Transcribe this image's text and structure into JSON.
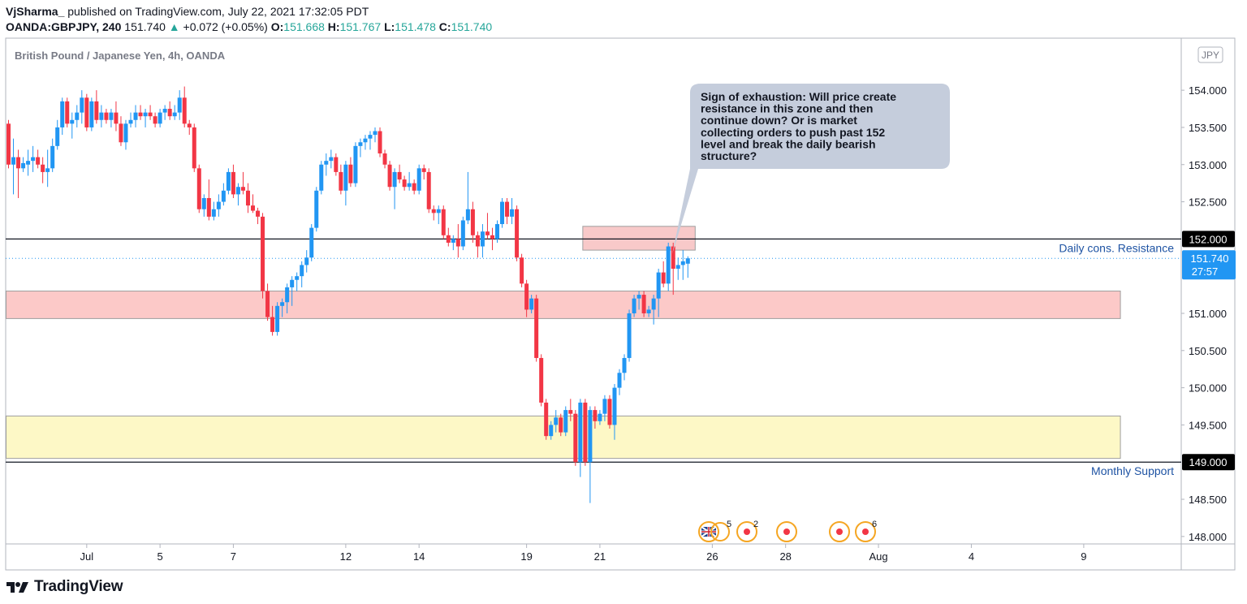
{
  "header": {
    "author": "VjSharma_",
    "published_text": "published on TradingView.com, July 22, 2021 17:32:05 PDT",
    "symbol": "OANDA:GBPJPY, 240",
    "last": "151.740",
    "change": "+0.072 (+0.05%)",
    "open_label": "O:",
    "open": "151.668",
    "high_label": "H:",
    "high": "151.767",
    "low_label": "L:",
    "low": "151.478",
    "close_label": "C:",
    "close": "151.740"
  },
  "footer": {
    "brand": "TradingView"
  },
  "chart_data": {
    "type": "candlestick",
    "title": "British Pound / Japanese Yen, 4h, OANDA",
    "currency_badge": "JPY",
    "ylim": [
      147.9,
      154.7
    ],
    "y_ticks": [
      "148.000",
      "148.500",
      "149.000",
      "149.500",
      "150.000",
      "150.500",
      "151.000",
      "151.500",
      "152.000",
      "152.500",
      "153.000",
      "153.500",
      "154.000"
    ],
    "x_ticks": [
      {
        "label": "Jul",
        "index": 16
      },
      {
        "label": "5",
        "index": 31
      },
      {
        "label": "7",
        "index": 46
      },
      {
        "label": "12",
        "index": 69
      },
      {
        "label": "14",
        "index": 84
      },
      {
        "label": "19",
        "index": 106
      },
      {
        "label": "21",
        "index": 121
      },
      {
        "label": "26",
        "index": 144
      },
      {
        "label": "28",
        "index": 159
      },
      {
        "label": "Aug",
        "index": 178
      },
      {
        "label": "4",
        "index": 197
      },
      {
        "label": "9",
        "index": 220
      }
    ],
    "up_color": "#2196f3",
    "down_color": "#f23645",
    "candles": [
      [
        153.55,
        153.6,
        152.95,
        153.0
      ],
      [
        153.0,
        153.35,
        152.6,
        153.1
      ],
      [
        153.1,
        153.2,
        152.55,
        152.95
      ],
      [
        152.95,
        153.1,
        152.9,
        153.02
      ],
      [
        153.0,
        153.2,
        152.85,
        153.05
      ],
      [
        153.05,
        153.25,
        152.9,
        153.1
      ],
      [
        153.1,
        153.2,
        152.95,
        153.0
      ],
      [
        153.0,
        153.1,
        152.75,
        152.9
      ],
      [
        152.9,
        153.2,
        152.7,
        152.95
      ],
      [
        152.95,
        153.35,
        152.9,
        153.25
      ],
      [
        153.25,
        153.6,
        153.2,
        153.5
      ],
      [
        153.5,
        153.9,
        153.4,
        153.85
      ],
      [
        153.85,
        153.9,
        153.5,
        153.55
      ],
      [
        153.55,
        153.7,
        153.35,
        153.6
      ],
      [
        153.6,
        153.8,
        153.5,
        153.7
      ],
      [
        153.7,
        154.0,
        153.55,
        153.9
      ],
      [
        153.9,
        153.95,
        153.45,
        153.5
      ],
      [
        153.5,
        153.9,
        153.45,
        153.85
      ],
      [
        153.85,
        154.0,
        153.55,
        153.6
      ],
      [
        153.6,
        153.8,
        153.5,
        153.7
      ],
      [
        153.7,
        153.75,
        153.55,
        153.6
      ],
      [
        153.6,
        153.75,
        153.5,
        153.7
      ],
      [
        153.7,
        153.85,
        153.45,
        153.55
      ],
      [
        153.55,
        153.65,
        153.25,
        153.3
      ],
      [
        153.3,
        153.6,
        153.2,
        153.55
      ],
      [
        153.55,
        153.7,
        153.5,
        153.6
      ],
      [
        153.6,
        153.8,
        153.5,
        153.7
      ],
      [
        153.7,
        153.8,
        153.6,
        153.65
      ],
      [
        153.65,
        153.75,
        153.5,
        153.7
      ],
      [
        153.7,
        153.8,
        153.6,
        153.65
      ],
      [
        153.65,
        153.7,
        153.5,
        153.55
      ],
      [
        153.55,
        153.75,
        153.5,
        153.7
      ],
      [
        153.7,
        153.8,
        153.6,
        153.75
      ],
      [
        153.75,
        153.85,
        153.6,
        153.65
      ],
      [
        153.65,
        153.8,
        153.6,
        153.7
      ],
      [
        153.7,
        154.0,
        153.6,
        153.9
      ],
      [
        153.9,
        154.05,
        153.5,
        153.55
      ],
      [
        153.55,
        153.6,
        153.4,
        153.5
      ],
      [
        153.5,
        153.55,
        152.9,
        152.95
      ],
      [
        152.95,
        153.0,
        152.35,
        152.4
      ],
      [
        152.4,
        152.6,
        152.3,
        152.55
      ],
      [
        152.55,
        152.8,
        152.25,
        152.3
      ],
      [
        152.3,
        152.5,
        152.25,
        152.4
      ],
      [
        152.4,
        152.6,
        152.3,
        152.5
      ],
      [
        152.5,
        152.75,
        152.45,
        152.65
      ],
      [
        152.65,
        152.95,
        152.6,
        152.9
      ],
      [
        152.9,
        153.0,
        152.55,
        152.6
      ],
      [
        152.6,
        152.75,
        152.45,
        152.7
      ],
      [
        152.7,
        152.9,
        152.6,
        152.65
      ],
      [
        152.65,
        152.75,
        152.35,
        152.45
      ],
      [
        152.45,
        152.6,
        152.35,
        152.38
      ],
      [
        152.38,
        152.42,
        152.2,
        152.3
      ],
      [
        152.3,
        152.35,
        151.2,
        151.3
      ],
      [
        151.3,
        151.4,
        150.9,
        150.95
      ],
      [
        150.95,
        151.1,
        150.7,
        150.75
      ],
      [
        150.75,
        151.15,
        150.7,
        151.1
      ],
      [
        151.1,
        151.2,
        150.95,
        151.15
      ],
      [
        151.15,
        151.4,
        151.0,
        151.35
      ],
      [
        151.35,
        151.5,
        151.1,
        151.45
      ],
      [
        151.45,
        151.55,
        151.3,
        151.5
      ],
      [
        151.5,
        151.7,
        151.35,
        151.65
      ],
      [
        151.65,
        151.85,
        151.55,
        151.75
      ],
      [
        151.75,
        152.2,
        151.7,
        152.15
      ],
      [
        152.15,
        152.7,
        152.1,
        152.65
      ],
      [
        152.65,
        153.05,
        152.6,
        153.0
      ],
      [
        153.0,
        153.15,
        152.85,
        153.05
      ],
      [
        153.05,
        153.2,
        152.95,
        153.1
      ],
      [
        153.1,
        153.15,
        152.85,
        152.9
      ],
      [
        152.9,
        153.0,
        152.6,
        152.65
      ],
      [
        152.65,
        153.05,
        152.45,
        153.0
      ],
      [
        153.0,
        153.1,
        152.7,
        152.75
      ],
      [
        152.75,
        153.3,
        152.7,
        153.25
      ],
      [
        153.25,
        153.35,
        153.1,
        153.3
      ],
      [
        153.3,
        153.4,
        153.2,
        153.35
      ],
      [
        153.35,
        153.45,
        153.2,
        153.4
      ],
      [
        153.4,
        153.5,
        153.3,
        153.45
      ],
      [
        153.45,
        153.5,
        153.1,
        153.15
      ],
      [
        153.15,
        153.2,
        152.95,
        153.0
      ],
      [
        153.0,
        153.05,
        152.65,
        152.7
      ],
      [
        152.7,
        152.95,
        152.4,
        152.9
      ],
      [
        152.9,
        153.0,
        152.75,
        152.8
      ],
      [
        152.8,
        152.85,
        152.65,
        152.7
      ],
      [
        152.7,
        152.9,
        152.65,
        152.75
      ],
      [
        152.75,
        152.8,
        152.6,
        152.65
      ],
      [
        152.65,
        153.0,
        152.6,
        152.95
      ],
      [
        152.95,
        153.0,
        152.8,
        152.9
      ],
      [
        152.9,
        152.95,
        152.35,
        152.4
      ],
      [
        152.4,
        152.45,
        152.25,
        152.35
      ],
      [
        152.35,
        152.45,
        152.2,
        152.4
      ],
      [
        152.4,
        152.45,
        152.0,
        152.05
      ],
      [
        152.05,
        152.15,
        151.9,
        151.95
      ],
      [
        151.95,
        152.05,
        151.85,
        152.0
      ],
      [
        152.0,
        152.2,
        151.75,
        151.9
      ],
      [
        151.9,
        152.3,
        151.85,
        152.25
      ],
      [
        152.25,
        152.9,
        152.2,
        152.4
      ],
      [
        152.4,
        152.5,
        151.95,
        152.05
      ],
      [
        152.05,
        152.1,
        151.75,
        151.9
      ],
      [
        151.9,
        152.2,
        151.75,
        152.1
      ],
      [
        152.1,
        152.35,
        152.0,
        152.05
      ],
      [
        152.05,
        152.15,
        151.85,
        152.0
      ],
      [
        152.0,
        152.25,
        151.95,
        152.2
      ],
      [
        152.2,
        152.55,
        152.15,
        152.5
      ],
      [
        152.5,
        152.55,
        152.2,
        152.3
      ],
      [
        152.3,
        152.55,
        152.2,
        152.4
      ],
      [
        152.4,
        152.45,
        151.7,
        151.75
      ],
      [
        151.75,
        151.8,
        151.35,
        151.4
      ],
      [
        151.4,
        151.45,
        150.95,
        151.05
      ],
      [
        151.05,
        151.25,
        151.0,
        151.2
      ],
      [
        151.2,
        151.25,
        150.35,
        150.4
      ],
      [
        150.4,
        150.45,
        149.75,
        149.8
      ],
      [
        149.8,
        149.85,
        149.3,
        149.35
      ],
      [
        149.35,
        149.55,
        149.3,
        149.5
      ],
      [
        149.5,
        149.7,
        149.4,
        149.6
      ],
      [
        149.6,
        149.65,
        149.35,
        149.4
      ],
      [
        149.4,
        149.75,
        149.35,
        149.7
      ],
      [
        149.7,
        149.85,
        149.55,
        149.65
      ],
      [
        149.65,
        149.7,
        148.95,
        149.0
      ],
      [
        149.0,
        149.85,
        148.8,
        149.8
      ],
      [
        149.8,
        149.85,
        148.95,
        149.0
      ],
      [
        149.0,
        149.75,
        148.45,
        149.7
      ],
      [
        149.7,
        149.75,
        149.45,
        149.55
      ],
      [
        149.55,
        149.7,
        149.5,
        149.65
      ],
      [
        149.65,
        149.9,
        149.55,
        149.85
      ],
      [
        149.85,
        149.9,
        149.45,
        149.5
      ],
      [
        149.5,
        150.05,
        149.3,
        150.0
      ],
      [
        150.0,
        150.25,
        149.9,
        150.2
      ],
      [
        150.2,
        150.45,
        150.1,
        150.4
      ],
      [
        150.4,
        151.05,
        150.35,
        151.0
      ],
      [
        151.0,
        151.25,
        150.95,
        151.2
      ],
      [
        151.2,
        151.3,
        151.05,
        151.25
      ],
      [
        151.25,
        151.3,
        150.95,
        151.0
      ],
      [
        151.0,
        151.1,
        150.95,
        151.05
      ],
      [
        151.05,
        151.25,
        150.85,
        151.2
      ],
      [
        151.2,
        151.6,
        150.95,
        151.55
      ],
      [
        151.55,
        151.7,
        151.35,
        151.4
      ],
      [
        151.4,
        151.95,
        151.3,
        151.9
      ],
      [
        151.9,
        151.95,
        151.25,
        151.6
      ],
      [
        151.6,
        151.75,
        151.45,
        151.65
      ],
      [
        151.65,
        151.85,
        151.45,
        151.7
      ],
      [
        151.668,
        151.767,
        151.478,
        151.74
      ]
    ],
    "last_price": "151.740",
    "countdown": "27:57",
    "levels": [
      {
        "name": "daily-resistance-line",
        "price": 152.0,
        "label": "Daily cons. Resistance",
        "badge": "152.000"
      },
      {
        "name": "monthly-support-line",
        "price": 149.0,
        "label": "Monthly Support",
        "badge": "149.000"
      }
    ],
    "zones": [
      {
        "name": "resistance-zone-small",
        "from_index": 118,
        "to_index": 140,
        "low": 151.85,
        "high": 152.17,
        "color": "#f8c9c9"
      },
      {
        "name": "support-resistance-zone",
        "from_index": 0,
        "to_index": 227,
        "low": 150.93,
        "high": 151.3,
        "color": "#fcc9c8"
      },
      {
        "name": "monthly-support-zone",
        "from_index": 0,
        "to_index": 227,
        "low": 149.05,
        "high": 149.62,
        "color": "#fdf8c6"
      }
    ],
    "callout": {
      "text_lines": [
        "Sign of exhaustion: Will price create",
        "resistance in this zone and then",
        "continue down? Or is market",
        "collecting orders to push past 152",
        "level and break the daily bearish",
        "structure?"
      ]
    },
    "events": [
      {
        "type": "flag",
        "count": "5"
      },
      {
        "type": "dot",
        "count": "2"
      },
      {
        "type": "dot",
        "count": ""
      },
      {
        "type": "dot",
        "count": ""
      },
      {
        "type": "dot",
        "count": "6"
      }
    ]
  }
}
